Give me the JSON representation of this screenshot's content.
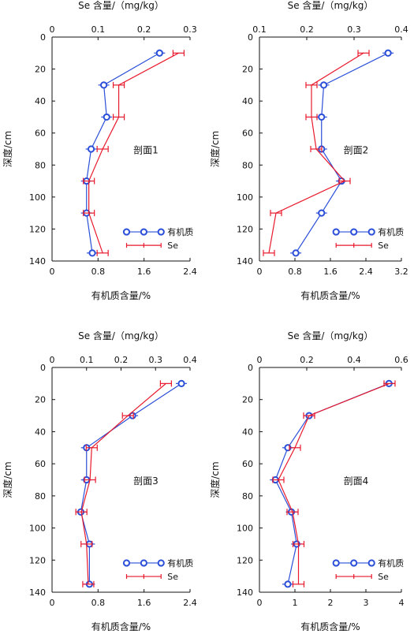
{
  "chart_data": [
    {
      "type": "line",
      "panel_label": "剖面1",
      "ylabel": "深度/cm",
      "xlabel_bottom": "有机质含量/%",
      "xlabel_top": "Se 含量/（mg/kg）",
      "yticks": [
        0,
        20,
        40,
        60,
        80,
        100,
        120,
        140
      ],
      "ylim": [
        0,
        140
      ],
      "xlim_bottom": [
        0,
        2.4
      ],
      "xticks_bottom": [
        "0",
        "0.8",
        "1.6",
        "2.4"
      ],
      "xlim_top": [
        0,
        0.3
      ],
      "xticks_top": [
        "0",
        "0.1",
        "0.2",
        "0.3"
      ],
      "legend": [
        "有机质",
        "Se"
      ],
      "series": [
        {
          "name": "有机质",
          "axis": "bottom",
          "color": "#2b4fd8",
          "marker": "circle",
          "points": [
            [
              1.87,
              10
            ],
            [
              0.9,
              30
            ],
            [
              0.95,
              50
            ],
            [
              0.68,
              70
            ],
            [
              0.6,
              90
            ],
            [
              0.6,
              110
            ],
            [
              0.7,
              135
            ]
          ]
        },
        {
          "name": "Se",
          "axis": "top",
          "color": "#e8192c",
          "marker": "errbar",
          "points": [
            [
              0.275,
              10
            ],
            [
              0.145,
              30
            ],
            [
              0.145,
              50
            ],
            [
              0.11,
              70
            ],
            [
              0.08,
              90
            ],
            [
              0.08,
              110
            ],
            [
              0.11,
              135
            ]
          ]
        }
      ]
    },
    {
      "type": "line",
      "panel_label": "剖面2",
      "ylabel": "深度/cm",
      "xlabel_bottom": "有机质含量/%",
      "xlabel_top": "Se 含量/（mg/kg）",
      "yticks": [
        0,
        20,
        40,
        60,
        80,
        100,
        120,
        140
      ],
      "ylim": [
        0,
        140
      ],
      "xlim_bottom": [
        0,
        3.2
      ],
      "xticks_bottom": [
        "0",
        "0.8",
        "1.6",
        "2.4",
        "3.2"
      ],
      "xlim_top": [
        0.1,
        0.4
      ],
      "xticks_top": [
        "0.1",
        "0.2",
        "0.3",
        "0.4"
      ],
      "legend": [
        "有机质",
        "Se"
      ],
      "series": [
        {
          "name": "有机质",
          "axis": "bottom",
          "color": "#2b4fd8",
          "marker": "circle",
          "points": [
            [
              2.9,
              10
            ],
            [
              1.45,
              30
            ],
            [
              1.4,
              50
            ],
            [
              1.4,
              70
            ],
            [
              1.85,
              90
            ],
            [
              1.4,
              110
            ],
            [
              0.82,
              135
            ]
          ]
        },
        {
          "name": "Se",
          "axis": "top",
          "color": "#e8192c",
          "marker": "errbar",
          "points": [
            [
              0.32,
              10
            ],
            [
              0.21,
              30
            ],
            [
              0.21,
              50
            ],
            [
              0.22,
              70
            ],
            [
              0.28,
              90
            ],
            [
              0.135,
              110
            ],
            [
              0.12,
              135
            ]
          ]
        }
      ]
    },
    {
      "type": "line",
      "panel_label": "剖面3",
      "ylabel": "深度/cm",
      "xlabel_bottom": "有机质含量/%",
      "xlabel_top": "Se 含量/（mg/kg）",
      "yticks": [
        0,
        20,
        40,
        60,
        80,
        100,
        120,
        140
      ],
      "ylim": [
        0,
        140
      ],
      "xlim_bottom": [
        0,
        2.4
      ],
      "xticks_bottom": [
        "0",
        "0.8",
        "1.6",
        "2.4"
      ],
      "xlim_top": [
        0,
        0.4
      ],
      "xticks_top": [
        "0",
        "0.1",
        "0.2",
        "0.3",
        "0.4"
      ],
      "legend": [
        "有机质",
        "Se"
      ],
      "series": [
        {
          "name": "有机质",
          "axis": "bottom",
          "color": "#2b4fd8",
          "marker": "circle",
          "points": [
            [
              2.25,
              10
            ],
            [
              1.4,
              30
            ],
            [
              0.6,
              50
            ],
            [
              0.6,
              70
            ],
            [
              0.5,
              90
            ],
            [
              0.65,
              110
            ],
            [
              0.65,
              135
            ]
          ]
        },
        {
          "name": "Se",
          "axis": "top",
          "color": "#e8192c",
          "marker": "errbar",
          "points": [
            [
              0.33,
              10
            ],
            [
              0.22,
              30
            ],
            [
              0.115,
              50
            ],
            [
              0.11,
              70
            ],
            [
              0.085,
              90
            ],
            [
              0.1,
              110
            ],
            [
              0.105,
              135
            ]
          ]
        }
      ]
    },
    {
      "type": "line",
      "panel_label": "剖面4",
      "ylabel": "深度/cm",
      "xlabel_bottom": "有机质含量/%",
      "xlabel_top": "Se 含量/（mg/kg）",
      "yticks": [
        0,
        20,
        40,
        60,
        80,
        100,
        120,
        140
      ],
      "ylim": [
        0,
        140
      ],
      "xlim_bottom": [
        0,
        4
      ],
      "xticks_bottom": [
        "0",
        "1",
        "2",
        "3",
        "4"
      ],
      "xlim_top": [
        0,
        0.6
      ],
      "xticks_top": [
        "0",
        "0.2",
        "0.4",
        "0.6"
      ],
      "legend": [
        "有机质",
        "Se"
      ],
      "series": [
        {
          "name": "有机质",
          "axis": "bottom",
          "color": "#2b4fd8",
          "marker": "circle",
          "points": [
            [
              3.65,
              10
            ],
            [
              1.4,
              30
            ],
            [
              0.8,
              50
            ],
            [
              0.45,
              70
            ],
            [
              0.9,
              90
            ],
            [
              1.05,
              110
            ],
            [
              0.8,
              135
            ]
          ]
        },
        {
          "name": "Se",
          "axis": "top",
          "color": "#e8192c",
          "marker": "errbar",
          "points": [
            [
              0.55,
              10
            ],
            [
              0.21,
              30
            ],
            [
              0.15,
              50
            ],
            [
              0.08,
              70
            ],
            [
              0.14,
              90
            ],
            [
              0.165,
              110
            ],
            [
              0.165,
              135
            ]
          ]
        }
      ]
    }
  ]
}
